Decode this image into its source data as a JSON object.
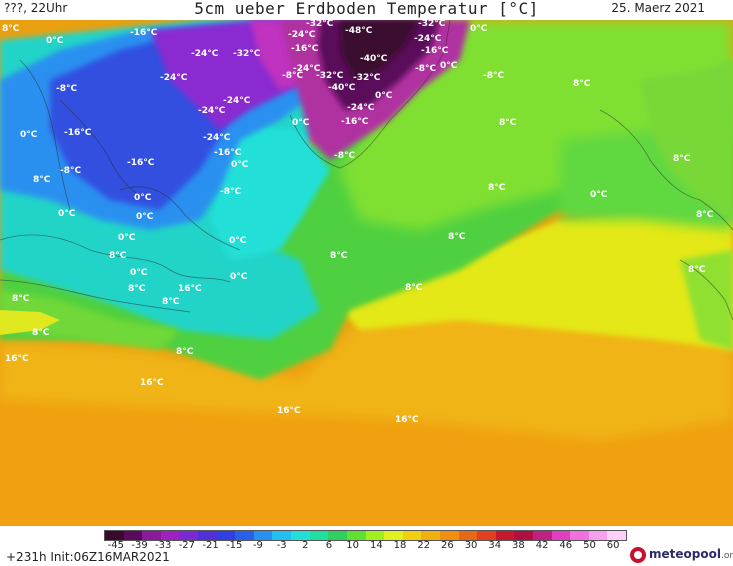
{
  "header": {
    "left": "???, 22Uhr",
    "title": "5cm ueber Erdboden Temperatur [°C]",
    "right": "25. Maerz 2021"
  },
  "colorbar": {
    "labels": [
      "-45",
      "-39",
      "-33",
      "-27",
      "-21",
      "-15",
      "-9",
      "-3",
      "2",
      "6",
      "10",
      "14",
      "18",
      "22",
      "26",
      "30",
      "34",
      "38",
      "42",
      "46",
      "50",
      "60"
    ],
    "colors": [
      "#3a0a2e",
      "#5a0a5a",
      "#8a1a9a",
      "#a020c0",
      "#7a2ad0",
      "#5030d8",
      "#3040e0",
      "#2a60e8",
      "#2a90f0",
      "#22c0f0",
      "#22e0d8",
      "#20e0a0",
      "#30d060",
      "#60e030",
      "#a0f020",
      "#e0f020",
      "#f0d010",
      "#f0b010",
      "#f09010",
      "#e86818",
      "#e04020",
      "#c81830",
      "#b01040",
      "#c02080",
      "#e040c0",
      "#f070e0",
      "#f8a0f0",
      "#fcd0f8"
    ],
    "value_range": [
      -45,
      60
    ]
  },
  "footer": {
    "run_info": "+231h Init:06Z16MAR2021",
    "logo": "meteopool",
    "logo_tld": ".org"
  },
  "labels": [
    {
      "text": "8°C"
    },
    {
      "text": "-16°C"
    },
    {
      "text": "0°C"
    },
    {
      "text": "-32°C"
    },
    {
      "text": "-48°C"
    },
    {
      "text": "-32°C"
    },
    {
      "text": "0°C"
    },
    {
      "text": "-24°C"
    },
    {
      "text": "-32°C"
    },
    {
      "text": "-16°C"
    },
    {
      "text": "-24°C"
    },
    {
      "text": "-24°C"
    },
    {
      "text": "-40°C"
    },
    {
      "text": "-16°C"
    },
    {
      "text": "-24°C"
    },
    {
      "text": "-8°C"
    },
    {
      "text": "-24°C"
    },
    {
      "text": "-8°C"
    },
    {
      "text": "-32°C"
    },
    {
      "text": "-8°C"
    },
    {
      "text": "0°C"
    },
    {
      "text": "-8°C"
    },
    {
      "text": "-40°C"
    },
    {
      "text": "-32°C"
    },
    {
      "text": "8°C"
    },
    {
      "text": "-24°C"
    },
    {
      "text": "0°C"
    },
    {
      "text": "-24°C"
    },
    {
      "text": "-24°C"
    },
    {
      "text": "-16°C"
    },
    {
      "text": "0°C"
    },
    {
      "text": "-16°C"
    },
    {
      "text": "8°C"
    },
    {
      "text": "0°C"
    },
    {
      "text": "-24°C"
    },
    {
      "text": "-8°C"
    },
    {
      "text": "-16°C"
    },
    {
      "text": "0°C"
    },
    {
      "text": "8°C"
    },
    {
      "text": "-16°C"
    },
    {
      "text": "-8°C"
    },
    {
      "text": "8°C"
    },
    {
      "text": "-8°C"
    },
    {
      "text": "0°C"
    },
    {
      "text": "0°C"
    },
    {
      "text": "8°C"
    },
    {
      "text": "0°C"
    },
    {
      "text": "0°C"
    },
    {
      "text": "8°C"
    },
    {
      "text": "0°C"
    },
    {
      "text": "8°C"
    },
    {
      "text": "8°C"
    },
    {
      "text": "8°C"
    },
    {
      "text": "0°C"
    },
    {
      "text": "8°C"
    },
    {
      "text": "0°C"
    },
    {
      "text": "8°C"
    },
    {
      "text": "8°C"
    },
    {
      "text": "0°C"
    },
    {
      "text": "8°C"
    },
    {
      "text": "8°C"
    },
    {
      "text": "16°C"
    },
    {
      "text": "8°C"
    },
    {
      "text": "8°C"
    },
    {
      "text": "16°C"
    },
    {
      "text": "16°C"
    },
    {
      "text": "16°C"
    },
    {
      "text": "16°C"
    }
  ]
}
